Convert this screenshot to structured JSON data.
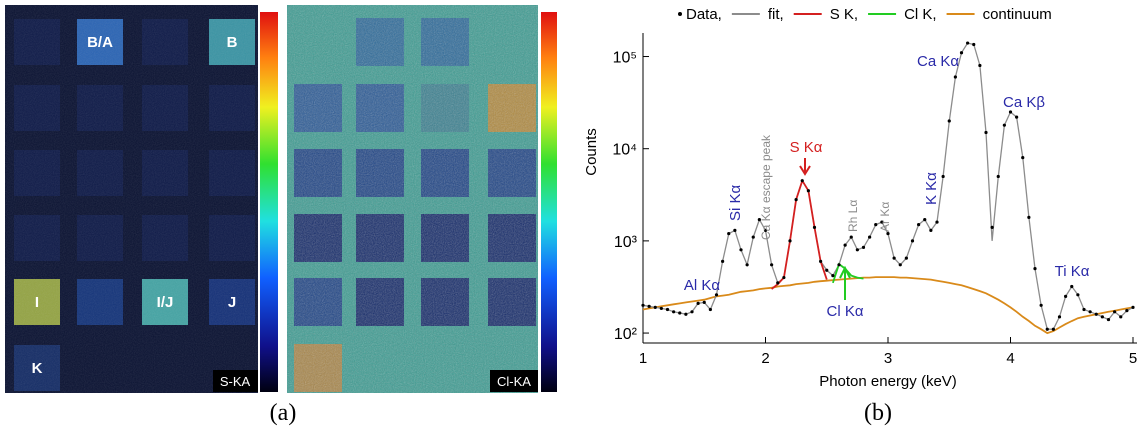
{
  "captions": [
    "(a)",
    "(b)"
  ],
  "panel_a": {
    "map_labels": [
      "S-KA",
      "Cl-KA"
    ],
    "sample_labels": [
      "B/A",
      "B",
      "I",
      "I/J",
      "J",
      "K"
    ]
  },
  "chart_data": {
    "type": "line",
    "xlabel": "Photon energy (keV)",
    "ylabel": "Counts",
    "xlim": [
      1,
      5
    ],
    "xticks": [
      1,
      2,
      3,
      4,
      5
    ],
    "yscale": "log",
    "ylim": [
      78,
      180000
    ],
    "yticks": [
      {
        "value": 100,
        "label": "10²"
      },
      {
        "value": 1000,
        "label": "10³"
      },
      {
        "value": 10000,
        "label": "10⁴"
      },
      {
        "value": 100000,
        "label": "10⁵"
      }
    ],
    "legend": "top",
    "x": [
      1.0,
      1.05,
      1.1,
      1.15,
      1.2,
      1.25,
      1.3,
      1.35,
      1.4,
      1.45,
      1.5,
      1.55,
      1.6,
      1.65,
      1.7,
      1.75,
      1.8,
      1.85,
      1.9,
      1.95,
      2.0,
      2.05,
      2.1,
      2.15,
      2.2,
      2.25,
      2.3,
      2.35,
      2.4,
      2.45,
      2.5,
      2.55,
      2.6,
      2.65,
      2.7,
      2.75,
      2.8,
      2.85,
      2.9,
      2.95,
      3.0,
      3.05,
      3.1,
      3.15,
      3.2,
      3.25,
      3.3,
      3.35,
      3.4,
      3.45,
      3.5,
      3.55,
      3.6,
      3.65,
      3.7,
      3.75,
      3.8,
      3.85,
      3.9,
      3.95,
      4.0,
      4.05,
      4.1,
      4.15,
      4.2,
      4.25,
      4.3,
      4.35,
      4.4,
      4.45,
      4.5,
      4.55,
      4.6,
      4.65,
      4.7,
      4.75,
      4.8,
      4.85,
      4.9,
      4.95,
      5.0
    ],
    "series": [
      {
        "name": "Data,",
        "color": "#000000",
        "mode": "markers",
        "values": [
          200,
          195,
          190,
          185,
          180,
          170,
          165,
          160,
          170,
          210,
          215,
          180,
          260,
          600,
          1200,
          1300,
          800,
          550,
          1100,
          1700,
          1300,
          550,
          350,
          400,
          1000,
          2800,
          4500,
          3500,
          1400,
          600,
          480,
          420,
          550,
          900,
          1100,
          800,
          850,
          1100,
          1500,
          1600,
          1200,
          650,
          550,
          650,
          1000,
          1500,
          1700,
          1300,
          1600,
          5000,
          20000,
          60000,
          110000,
          140000,
          135000,
          80000,
          15000,
          1400,
          5000,
          18000,
          25000,
          22000,
          8000,
          1800,
          500,
          200,
          110,
          110,
          150,
          250,
          320,
          260,
          180,
          170,
          160,
          150,
          140,
          170,
          150,
          175,
          190
        ]
      },
      {
        "name": "fit,",
        "color": "#8c8c8c",
        "mode": "lines",
        "values": [
          200,
          195,
          190,
          185,
          180,
          170,
          165,
          160,
          170,
          210,
          215,
          180,
          260,
          600,
          1200,
          1300,
          800,
          550,
          1100,
          1700,
          1300,
          550,
          350,
          400,
          1000,
          2800,
          4500,
          3500,
          1400,
          600,
          480,
          420,
          550,
          900,
          1100,
          800,
          850,
          1100,
          1500,
          1600,
          1200,
          650,
          550,
          650,
          1000,
          1500,
          1700,
          1300,
          1600,
          5000,
          20000,
          60000,
          110000,
          140000,
          135000,
          80000,
          15000,
          1000,
          5000,
          18000,
          25000,
          22000,
          8000,
          1800,
          500,
          200,
          110,
          110,
          150,
          250,
          320,
          260,
          180,
          170,
          160,
          150,
          140,
          170,
          150,
          175,
          190
        ]
      },
      {
        "name": "S K,",
        "color": "#d42020",
        "mode": "lines",
        "values": [
          null,
          null,
          null,
          null,
          null,
          null,
          null,
          null,
          null,
          null,
          null,
          null,
          null,
          null,
          null,
          null,
          null,
          null,
          null,
          null,
          null,
          300,
          340,
          400,
          1000,
          2800,
          4500,
          3500,
          1400,
          600,
          380,
          null,
          null,
          null,
          null,
          null,
          null,
          null,
          null,
          null,
          null,
          null,
          null,
          null,
          null,
          null,
          null,
          null,
          null,
          null,
          null,
          null,
          null,
          null,
          null,
          null,
          null,
          null,
          null,
          null,
          null,
          null,
          null,
          null,
          null,
          null,
          null,
          null,
          null,
          null,
          null,
          null,
          null,
          null,
          null,
          null,
          null,
          null,
          null,
          null,
          null
        ]
      },
      {
        "name": "Cl K,",
        "color": "#22cc22",
        "mode": "lines",
        "values": [
          null,
          null,
          null,
          null,
          null,
          null,
          null,
          null,
          null,
          null,
          null,
          null,
          null,
          null,
          null,
          null,
          null,
          null,
          null,
          null,
          null,
          null,
          null,
          null,
          null,
          null,
          null,
          null,
          null,
          null,
          null,
          350,
          560,
          500,
          420,
          400,
          390,
          null,
          null,
          null,
          null,
          null,
          null,
          null,
          null,
          null,
          null,
          null,
          null,
          null,
          null,
          null,
          null,
          null,
          null,
          null,
          null,
          null,
          null,
          null,
          null,
          null,
          null,
          null,
          null,
          null,
          null,
          null,
          null,
          null,
          null,
          null,
          null,
          null,
          null,
          null,
          null,
          null,
          null,
          null,
          null
        ]
      },
      {
        "name": "continuum",
        "color": "#d98a1a",
        "mode": "lines",
        "values": [
          180,
          185,
          190,
          195,
          200,
          205,
          210,
          215,
          220,
          225,
          230,
          240,
          250,
          255,
          260,
          270,
          280,
          285,
          290,
          300,
          305,
          310,
          320,
          325,
          330,
          340,
          345,
          350,
          360,
          365,
          370,
          375,
          380,
          385,
          390,
          395,
          400,
          400,
          405,
          405,
          405,
          405,
          400,
          400,
          395,
          390,
          385,
          380,
          370,
          360,
          350,
          340,
          330,
          315,
          300,
          285,
          270,
          250,
          230,
          210,
          190,
          170,
          150,
          135,
          120,
          110,
          100,
          105,
          115,
          125,
          135,
          145,
          150,
          155,
          160,
          165,
          170,
          175,
          180,
          185,
          190
        ]
      }
    ],
    "annotations": [
      {
        "text": "Al Kα",
        "color": "#2a2aa8"
      },
      {
        "text": "Si Kα",
        "color": "#2a2aa8"
      },
      {
        "text": "Ca Kα escape peak",
        "color": "#8c8c8c"
      },
      {
        "text": "S Kα",
        "color": "#d42020"
      },
      {
        "text": "Rh Lα",
        "color": "#8c8c8c"
      },
      {
        "text": "Ar Kα",
        "color": "#8c8c8c"
      },
      {
        "text": "K Kα",
        "color": "#2a2aa8"
      },
      {
        "text": "Ca Kα",
        "color": "#2a2aa8"
      },
      {
        "text": "Ca Kβ",
        "color": "#2a2aa8"
      },
      {
        "text": "Ti Kα",
        "color": "#2a2aa8"
      },
      {
        "text": "Cl Kα",
        "color": "#2a2aa8"
      }
    ]
  }
}
